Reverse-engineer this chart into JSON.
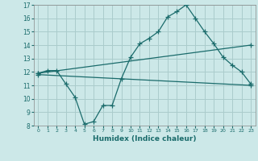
{
  "xlabel": "Humidex (Indice chaleur)",
  "bg_color": "#cce8e8",
  "grid_color": "#aacccc",
  "line_color": "#1a6b6b",
  "xlim": [
    -0.5,
    23.5
  ],
  "ylim": [
    8,
    17
  ],
  "xticks": [
    0,
    1,
    2,
    3,
    4,
    5,
    6,
    7,
    8,
    9,
    10,
    11,
    12,
    13,
    14,
    15,
    16,
    17,
    18,
    19,
    20,
    21,
    22,
    23
  ],
  "yticks": [
    8,
    9,
    10,
    11,
    12,
    13,
    14,
    15,
    16,
    17
  ],
  "line1_x": [
    0,
    1,
    2,
    3,
    4,
    5,
    6,
    7,
    8,
    9,
    10,
    11,
    12,
    13,
    14,
    15,
    16,
    17,
    18,
    19,
    20,
    21,
    22,
    23
  ],
  "line1_y": [
    11.9,
    12.1,
    12.1,
    11.1,
    10.1,
    8.1,
    8.3,
    9.5,
    9.5,
    11.5,
    13.1,
    14.1,
    14.5,
    15.0,
    16.1,
    16.5,
    17.0,
    16.0,
    15.0,
    14.1,
    13.1,
    12.5,
    12.0,
    11.1
  ],
  "line2_x": [
    0,
    23
  ],
  "line2_y": [
    11.9,
    14.0
  ],
  "line3_x": [
    0,
    23
  ],
  "line3_y": [
    11.8,
    11.0
  ]
}
